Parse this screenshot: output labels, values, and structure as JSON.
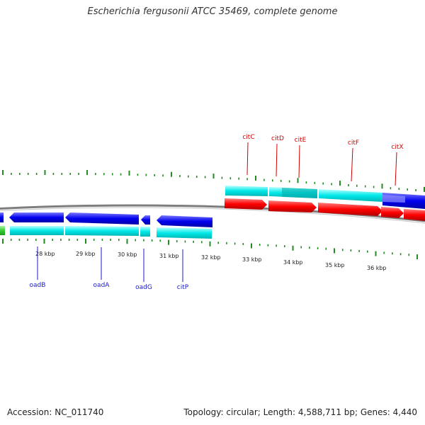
{
  "title": "Escherichia fergusonii ATCC 35469, complete genome",
  "accession": "Accession: NC_011740",
  "stats": "Topology: circular; Length: 4,588,711 bp; Genes: 4,440",
  "kbp_labels": [
    "28 kbp",
    "29 kbp",
    "30 kbp",
    "31 kbp",
    "32 kbp",
    "33 kbp",
    "34 kbp",
    "35 kbp",
    "36 kbp"
  ],
  "genes_upper": [
    "citC",
    "citD",
    "citE",
    "citF",
    "citX"
  ],
  "genes_lower": [
    "oadB",
    "oadA",
    "oadG",
    "citP"
  ],
  "colors": {
    "forward_cds": "#ff0000",
    "reverse_cds": "#0000ee",
    "feature_track": "#00e5e5",
    "rna_track": "#33cc33",
    "backbone": "#888888",
    "ticks": "#228b22",
    "upper_labels": "#d00000",
    "lower_labels": "#1a1acc"
  },
  "icons": {
    "forward_cds": "right-arrow",
    "reverse_cds": "left-arrow"
  }
}
